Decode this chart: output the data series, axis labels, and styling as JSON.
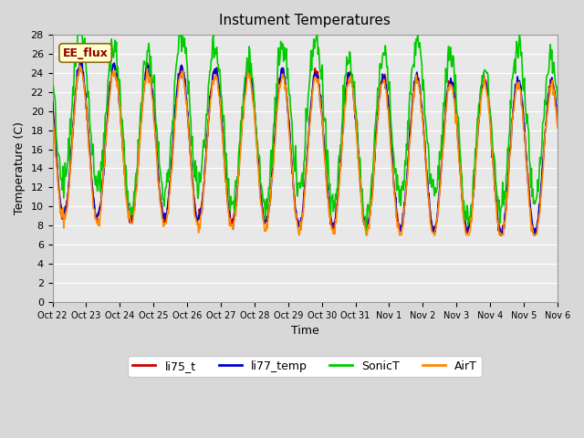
{
  "title": "Instument Temperatures",
  "xlabel": "Time",
  "ylabel": "Temperature (C)",
  "ylim": [
    0,
    28
  ],
  "yticks": [
    0,
    2,
    4,
    6,
    8,
    10,
    12,
    14,
    16,
    18,
    20,
    22,
    24,
    26,
    28
  ],
  "line_colors": {
    "li75_t": "#cc0000",
    "li77_temp": "#0000cc",
    "SonicT": "#00cc00",
    "AirT": "#ff8800"
  },
  "legend_labels": [
    "li75_t",
    "li77_temp",
    "SonicT",
    "AirT"
  ],
  "annotation_text": "EE_flux",
  "annotation_color": "#8b0000",
  "annotation_bg": "#ffffcc",
  "linewidth": 1.2,
  "n_days": 15,
  "xtick_labels": [
    "Oct 22",
    "Oct 23",
    "Oct 24",
    "Oct 25",
    "Oct 26",
    "Oct 27",
    "Oct 28",
    "Oct 29",
    "Oct 30",
    "Oct 31",
    "Nov 1",
    "Nov 2",
    "Nov 3",
    "Nov 4",
    "Nov 5",
    "Nov 6"
  ]
}
